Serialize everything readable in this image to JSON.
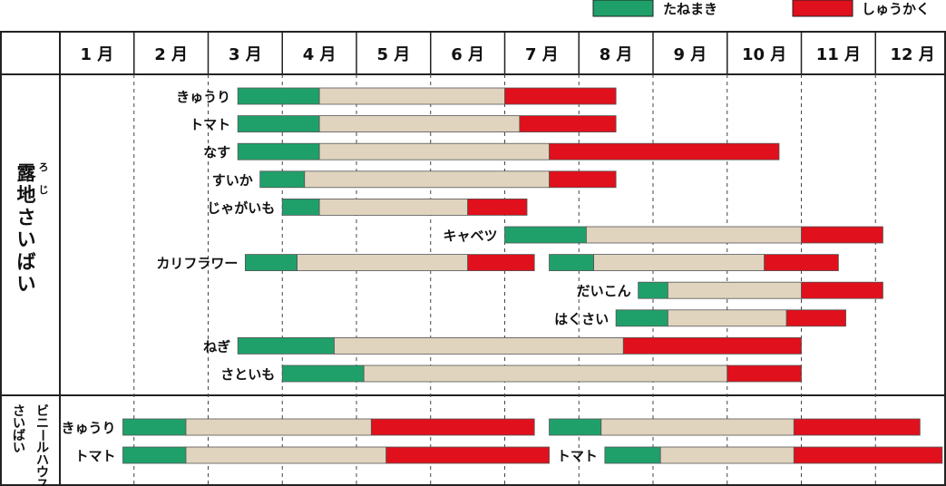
{
  "legend": {
    "sowing": {
      "label": "たねまき",
      "color": "#1fa06a"
    },
    "harvest": {
      "label": "しゅうかく",
      "color": "#e0101c"
    }
  },
  "growing_color": "#e0d4bf",
  "months": [
    "1 月",
    "2 月",
    "3 月",
    "4 月",
    "5 月",
    "6 月",
    "7 月",
    "8 月",
    "9 月",
    "10 月",
    "11 月",
    "12 月"
  ],
  "sections": [
    {
      "label_chars": [
        "露",
        "地",
        "さ",
        "い",
        "ば",
        "い"
      ],
      "ruby": [
        "ろ",
        "じ"
      ]
    },
    {
      "label_cols": [
        "ビニールハウス",
        "さいばい"
      ]
    }
  ],
  "chart_data": {
    "type": "gantt",
    "x_unit": "month (1.0 = start of January)",
    "xlim": [
      1,
      13
    ],
    "sections": [
      {
        "name": "露地さいばい",
        "rows": [
          {
            "crop": "きゅうり",
            "bars": [
              {
                "sow": [
                  3.4,
                  4.5
                ],
                "grow": [
                  4.5,
                  7.0
                ],
                "harvest": [
                  7.0,
                  8.5
                ]
              }
            ]
          },
          {
            "crop": "トマト",
            "bars": [
              {
                "sow": [
                  3.4,
                  4.5
                ],
                "grow": [
                  4.5,
                  7.2
                ],
                "harvest": [
                  7.2,
                  8.5
                ]
              }
            ]
          },
          {
            "crop": "なす",
            "bars": [
              {
                "sow": [
                  3.4,
                  4.5
                ],
                "grow": [
                  4.5,
                  7.6
                ],
                "harvest": [
                  7.6,
                  10.7
                ]
              }
            ]
          },
          {
            "crop": "すいか",
            "bars": [
              {
                "sow": [
                  3.7,
                  4.3
                ],
                "grow": [
                  4.3,
                  7.6
                ],
                "harvest": [
                  7.6,
                  8.5
                ]
              }
            ]
          },
          {
            "crop": "じゃがいも",
            "bars": [
              {
                "sow": [
                  4.0,
                  4.5
                ],
                "grow": [
                  4.5,
                  6.5
                ],
                "harvest": [
                  6.5,
                  7.3
                ]
              }
            ]
          },
          {
            "crop": "キャベツ",
            "bars": [
              {
                "sow": [
                  7.0,
                  8.1
                ],
                "grow": [
                  8.1,
                  11.0
                ],
                "harvest": [
                  11.0,
                  12.1
                ]
              }
            ]
          },
          {
            "crop": "カリフラワー",
            "bars": [
              {
                "sow": [
                  3.5,
                  4.2
                ],
                "grow": [
                  4.2,
                  6.5
                ],
                "harvest": [
                  6.5,
                  7.4
                ]
              },
              {
                "sow": [
                  7.6,
                  8.2
                ],
                "grow": [
                  8.2,
                  10.5
                ],
                "harvest": [
                  10.5,
                  11.5
                ]
              }
            ]
          },
          {
            "crop": "だいこん",
            "bars": [
              {
                "sow": [
                  8.8,
                  9.2
                ],
                "grow": [
                  9.2,
                  11.0
                ],
                "harvest": [
                  11.0,
                  12.1
                ]
              }
            ]
          },
          {
            "crop": "はくさい",
            "bars": [
              {
                "sow": [
                  8.5,
                  9.2
                ],
                "grow": [
                  9.2,
                  10.8
                ],
                "harvest": [
                  10.8,
                  11.6
                ]
              }
            ]
          },
          {
            "crop": "ねぎ",
            "bars": [
              {
                "sow": [
                  3.4,
                  4.7
                ],
                "grow": [
                  4.7,
                  8.6
                ],
                "harvest": [
                  8.6,
                  11.0
                ]
              }
            ]
          },
          {
            "crop": "さといも",
            "bars": [
              {
                "sow": [
                  4.0,
                  5.1
                ],
                "grow": [
                  5.1,
                  10.0
                ],
                "harvest": [
                  10.0,
                  11.0
                ]
              }
            ]
          }
        ]
      },
      {
        "name": "ビニールハウスさいばい",
        "rows": [
          {
            "crop_labels": [
              "きゅうり"
            ],
            "bars": [
              {
                "sow": [
                  1.85,
                  2.7
                ],
                "grow": [
                  2.7,
                  5.2
                ],
                "harvest": [
                  5.2,
                  7.4
                ]
              },
              {
                "sow": [
                  7.6,
                  8.3
                ],
                "grow": [
                  8.3,
                  10.9
                ],
                "harvest": [
                  10.9,
                  12.6
                ]
              }
            ]
          },
          {
            "crop_labels": [
              "トマト",
              "トマト"
            ],
            "bars": [
              {
                "sow": [
                  1.85,
                  2.7
                ],
                "grow": [
                  2.7,
                  5.4
                ],
                "harvest": [
                  5.4,
                  7.6
                ]
              },
              {
                "sow": [
                  8.35,
                  9.1
                ],
                "grow": [
                  9.1,
                  10.9
                ],
                "harvest": [
                  10.9,
                  12.9
                ]
              }
            ]
          }
        ]
      }
    ]
  }
}
